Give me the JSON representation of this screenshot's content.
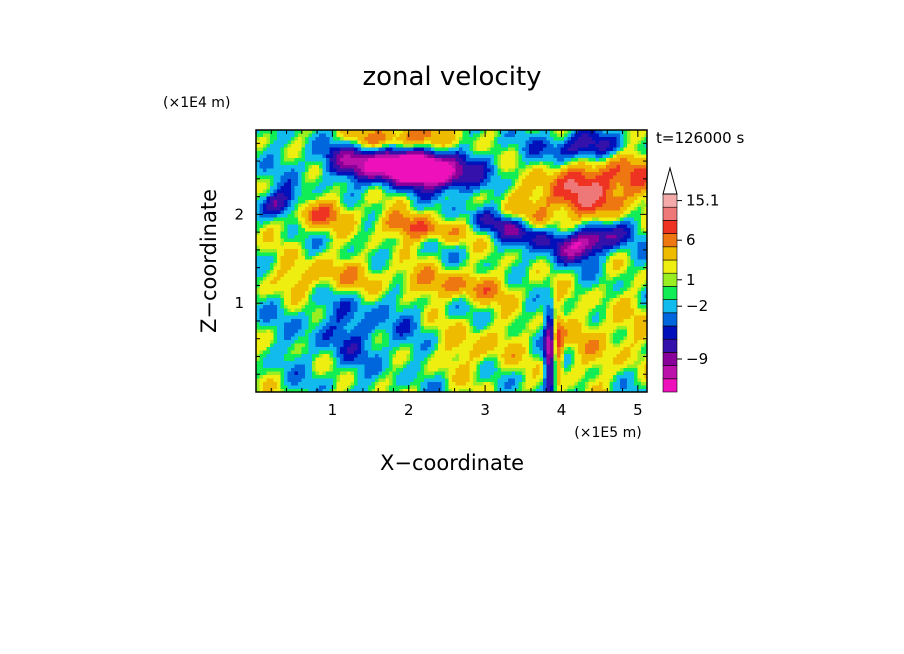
{
  "chart_data": {
    "type": "heatmap",
    "title": "zonal velocity",
    "xlabel": "X−coordinate",
    "ylabel": "Z−coordinate",
    "x_multiplier": "(×1E5 m)",
    "y_multiplier": "(×1E4 m)",
    "time_label": "t=126000 s",
    "xlim": [
      0,
      5.12
    ],
    "ylim": [
      0,
      2.95
    ],
    "x_ticks": [
      1,
      2,
      3,
      4,
      5
    ],
    "x_tick_labels": [
      "1",
      "2",
      "3",
      "4",
      "5"
    ],
    "y_ticks": [
      1,
      2
    ],
    "y_tick_labels": [
      "1",
      "2"
    ],
    "colorbar": {
      "colors": [
        "#ee11bb",
        "#bb11aa",
        "#880099",
        "#3311aa",
        "#0011bb",
        "#0066dd",
        "#11bbee",
        "#11ee55",
        "#99ee22",
        "#eeee11",
        "#eebb00",
        "#ee7711",
        "#ee3322",
        "#ee7777",
        "#f5aaaa"
      ],
      "labels": [
        {
          "text": "15.1",
          "band": 14
        },
        {
          "text": "6",
          "band": 11
        },
        {
          "text": "1",
          "band": 8
        },
        {
          "text": "−2",
          "band": 6
        },
        {
          "text": "−9",
          "band": 2
        }
      ],
      "extend": "max"
    },
    "features": [
      {
        "x": 1.8,
        "z": 2.55,
        "v": -14,
        "sx": 0.55,
        "sz": 0.14,
        "tilt": -0.2
      },
      {
        "x": 2.3,
        "z": 2.5,
        "v": -11,
        "sx": 0.3,
        "sz": 0.12,
        "tilt": -0.5
      },
      {
        "x": 0.3,
        "z": 2.1,
        "v": -9,
        "sx": 0.2,
        "sz": 0.12,
        "tilt": 0
      },
      {
        "x": 4.4,
        "z": 1.7,
        "v": -10,
        "sx": 0.3,
        "sz": 0.12,
        "tilt": 0.6
      },
      {
        "x": 3.5,
        "z": 1.8,
        "v": -7,
        "sx": 0.45,
        "sz": 0.1,
        "tilt": -0.6
      },
      {
        "x": 4.3,
        "z": 2.75,
        "v": -8,
        "sx": 0.35,
        "sz": 0.12,
        "tilt": 0
      },
      {
        "x": 4.4,
        "z": 2.3,
        "v": 9,
        "sx": 0.6,
        "sz": 0.25,
        "tilt": 0.4
      },
      {
        "x": 1.9,
        "z": 2.85,
        "v": 7,
        "sx": 0.45,
        "sz": 0.12,
        "tilt": 0
      },
      {
        "x": 0.7,
        "z": 2.0,
        "v": 6,
        "sx": 0.4,
        "sz": 0.12,
        "tilt": 0
      },
      {
        "x": 2.1,
        "z": 1.85,
        "v": 7,
        "sx": 0.35,
        "sz": 0.1,
        "tilt": -0.3
      },
      {
        "x": 0.9,
        "z": 1.3,
        "v": 4,
        "sx": 0.5,
        "sz": 0.15,
        "tilt": 0
      },
      {
        "x": 2.6,
        "z": 1.2,
        "v": 5,
        "sx": 0.6,
        "sz": 0.12,
        "tilt": -0.2
      },
      {
        "x": 1.3,
        "z": 0.7,
        "v": -3,
        "sx": 0.5,
        "sz": 0.3,
        "tilt": 0
      },
      {
        "x": 2.9,
        "z": 0.5,
        "v": 3,
        "sx": 0.4,
        "sz": 0.2,
        "tilt": 0
      },
      {
        "x": 3.85,
        "z": 0.45,
        "v": -10,
        "sx": 0.05,
        "sz": 0.35,
        "tilt": 0
      },
      {
        "x": 3.95,
        "z": 0.5,
        "v": 7,
        "sx": 0.05,
        "sz": 0.3,
        "tilt": 0
      },
      {
        "x": 4.6,
        "z": 0.6,
        "v": 3,
        "sx": 0.4,
        "sz": 0.3,
        "tilt": 0
      },
      {
        "x": 3.2,
        "z": 2.6,
        "v": -1,
        "sx": 0.3,
        "sz": 0.2,
        "tilt": 0
      }
    ]
  }
}
